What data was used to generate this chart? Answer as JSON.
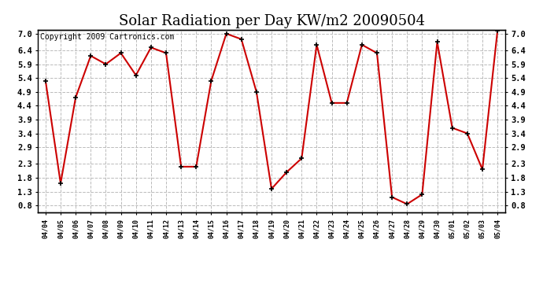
{
  "title": "Solar Radiation per Day KW/m2 20090504",
  "copyright": "Copyright 2009 Cartronics.com",
  "dates": [
    "04/04",
    "04/05",
    "04/06",
    "04/07",
    "04/08",
    "04/09",
    "04/10",
    "04/11",
    "04/12",
    "04/13",
    "04/14",
    "04/15",
    "04/16",
    "04/17",
    "04/18",
    "04/19",
    "04/20",
    "04/21",
    "04/22",
    "04/23",
    "04/24",
    "04/25",
    "04/26",
    "04/27",
    "04/28",
    "04/29",
    "04/30",
    "05/01",
    "05/02",
    "05/03",
    "05/04"
  ],
  "values": [
    5.3,
    1.6,
    4.7,
    6.2,
    5.9,
    6.3,
    5.5,
    6.5,
    6.3,
    2.2,
    2.2,
    5.3,
    7.0,
    6.8,
    4.9,
    1.4,
    2.0,
    2.5,
    6.6,
    4.5,
    4.5,
    6.6,
    6.3,
    1.1,
    0.85,
    1.2,
    6.7,
    3.6,
    3.4,
    2.1,
    7.1
  ],
  "line_color": "#cc0000",
  "marker_color": "#000000",
  "bg_color": "#ffffff",
  "grid_color": "#bbbbbb",
  "yticks": [
    0.8,
    1.3,
    1.8,
    2.3,
    2.9,
    3.4,
    3.9,
    4.4,
    4.9,
    5.4,
    5.9,
    6.4,
    7.0
  ],
  "title_fontsize": 13,
  "copyright_fontsize": 7,
  "tick_fontsize": 7.5,
  "xtick_fontsize": 6
}
